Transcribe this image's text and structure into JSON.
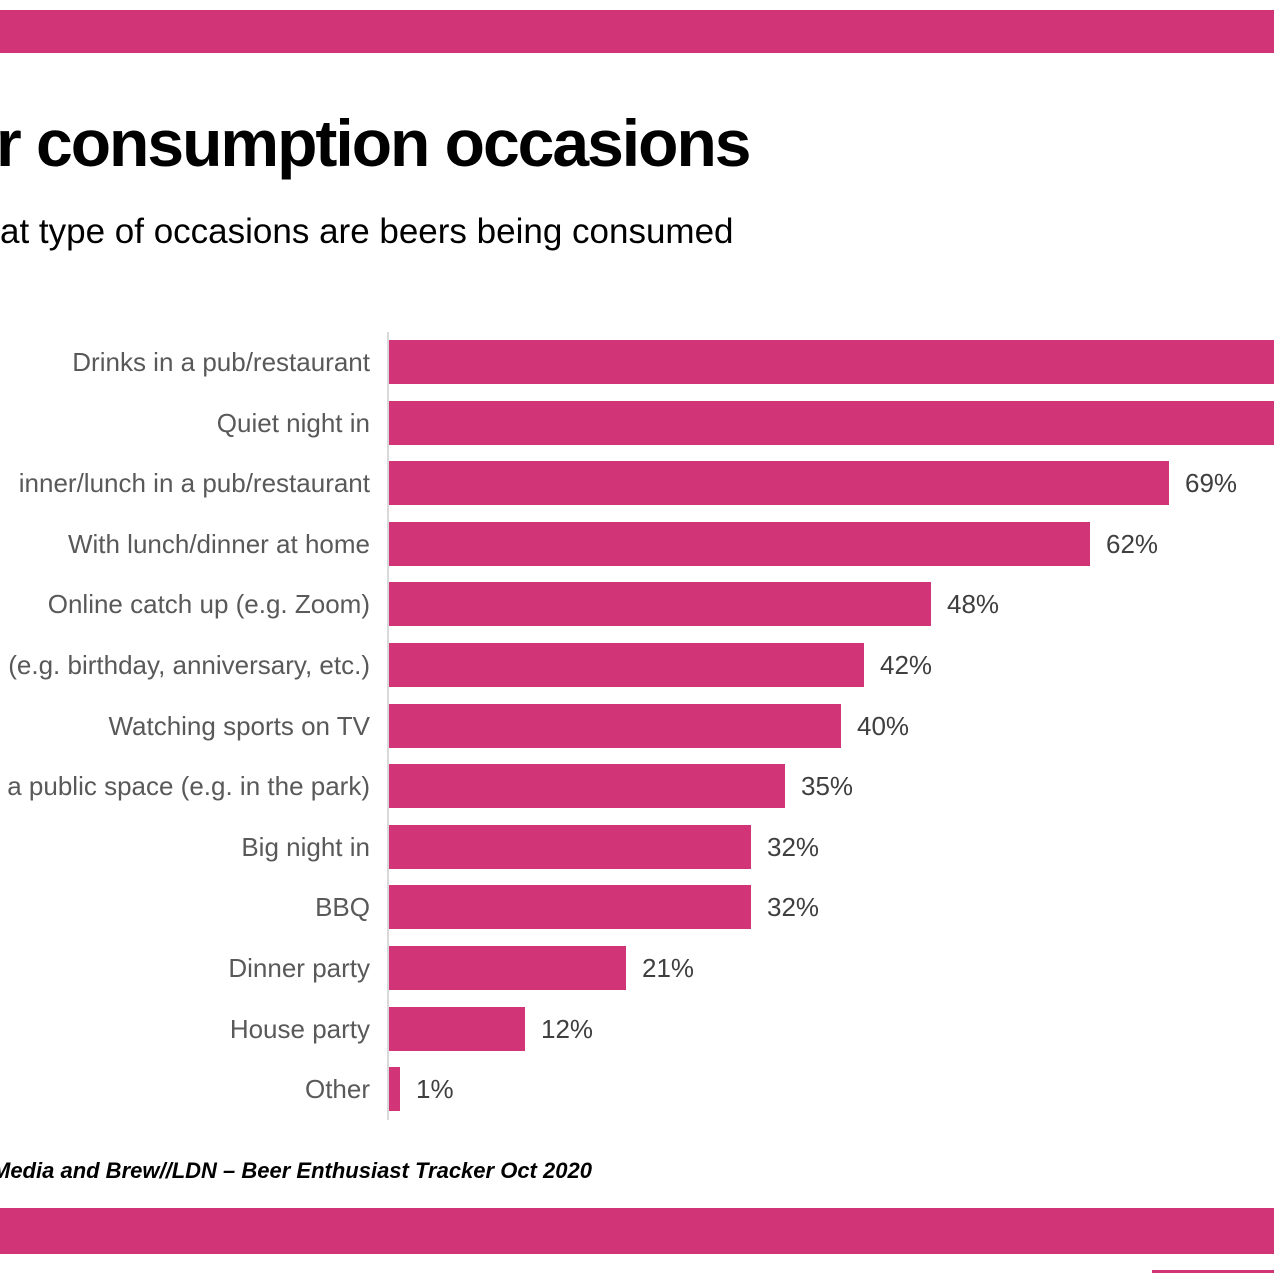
{
  "page": {
    "background": "#ffffff",
    "accent_color": "#d23577"
  },
  "header": {
    "title": "r consumption occasions",
    "subtitle": "at type of occasions are beers being consumed"
  },
  "chart_data": {
    "type": "bar",
    "orientation": "horizontal",
    "title": "r consumption occasions (clipped: Beer consumption occasions)",
    "xlabel": "",
    "ylabel": "",
    "grid": false,
    "legend": false,
    "axis_line_color": "#d9d9d9",
    "bar_color": "#d23577",
    "category_label_color": "#595959",
    "value_label_color": "#3f3f3f",
    "x_axis_units": "percent",
    "bars": [
      {
        "label": "Drinks in a pub/restaurant",
        "value": null,
        "value_label": "",
        "clipped_off_right_edge": true
      },
      {
        "label": "Quiet night in",
        "value": null,
        "value_label": "",
        "clipped_off_right_edge": true
      },
      {
        "label": "inner/lunch in a pub/restaurant",
        "value": 69,
        "value_label": "69%",
        "clipped_off_right_edge": false
      },
      {
        "label": "With lunch/dinner at home",
        "value": 62,
        "value_label": "62%",
        "clipped_off_right_edge": false
      },
      {
        "label": "Online catch up (e.g. Zoom)",
        "value": 48,
        "value_label": "48%",
        "clipped_off_right_edge": false
      },
      {
        "label": "(e.g. birthday, anniversary, etc.)",
        "value": 42,
        "value_label": "42%",
        "clipped_off_right_edge": false
      },
      {
        "label": "Watching sports on TV",
        "value": 40,
        "value_label": "40%",
        "clipped_off_right_edge": false
      },
      {
        "label": "a public space (e.g. in the park)",
        "value": 35,
        "value_label": "35%",
        "clipped_off_right_edge": false
      },
      {
        "label": "Big night in",
        "value": 32,
        "value_label": "32%",
        "clipped_off_right_edge": false
      },
      {
        "label": "BBQ",
        "value": 32,
        "value_label": "32%",
        "clipped_off_right_edge": false
      },
      {
        "label": "Dinner party",
        "value": 21,
        "value_label": "21%",
        "clipped_off_right_edge": false
      },
      {
        "label": "House party",
        "value": 12,
        "value_label": "12%",
        "clipped_off_right_edge": false
      },
      {
        "label": "Other",
        "value": 1,
        "value_label": "1%",
        "clipped_off_right_edge": false
      }
    ]
  },
  "footer": {
    "source_text": "Media and Brew//LDN – Beer Enthusiast Tracker Oct 2020"
  }
}
